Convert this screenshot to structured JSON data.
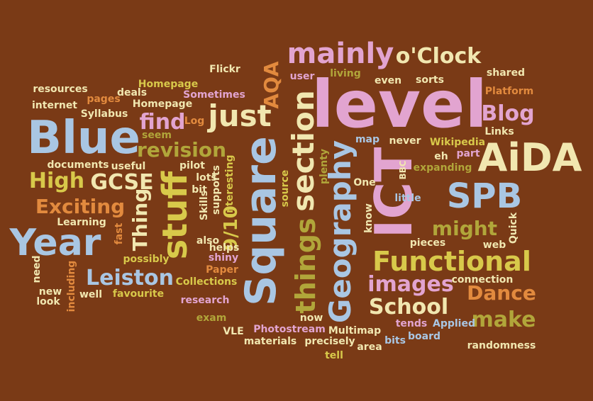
{
  "background": "#7a3a16",
  "palette": {
    "cream": "#f1e7b0",
    "light_blue": "#a9c6e3",
    "pink": "#e2a4d0",
    "olive_yellow": "#d8c94a",
    "orange": "#e28a3e",
    "olive": "#b1a63a",
    "peach": "#f0b580"
  },
  "words": {
    "level": "level",
    "blue": "Blue",
    "square": "Square",
    "ict": "ICT",
    "year": "Year",
    "stuff": "stuff",
    "aida": "AiDA",
    "spb": "SPB",
    "functional": "Functional",
    "mainly": "mainly",
    "just": "just",
    "section": "section",
    "geography": "Geography",
    "things": "things",
    "oclock": "o'Clock",
    "images": "images",
    "school": "School",
    "leiston": "Leiston",
    "high": "High",
    "gcse": "GCSE",
    "revision": "revision",
    "find": "find",
    "exciting": "Exciting",
    "thing": "Thing",
    "blog": "Blog",
    "dance": "Dance",
    "make": "make",
    "might": "might",
    "aqa": "AQA",
    "nine_ten": "9/10",
    "flickr": "Flickr",
    "resources": "resources",
    "pages": "pages",
    "deals": "deals",
    "homepage": "Homepage",
    "sometimes": "Sometimes",
    "internet": "internet",
    "syllabus": "Syllabus",
    "log": "Log",
    "seem": "seem",
    "useful": "useful",
    "documents": "documents",
    "pilot": "pilot",
    "lots": "lots",
    "skills": "Skills",
    "bit": "bit",
    "interesting": "interesting",
    "supports": "supports",
    "helps": "helps",
    "shiny": "shiny",
    "also": "also",
    "learning": "Learning",
    "fast": "fast",
    "possibly": "possibly",
    "need": "need",
    "including": "including",
    "new": "new",
    "look": "look",
    "well": "well",
    "favourite": "favourite",
    "paper": "Paper",
    "collections": "Collections",
    "research": "research",
    "exam": "exam",
    "vle": "VLE",
    "photostream": "Photostream",
    "materials": "materials",
    "precisely": "precisely",
    "multimap": "Multimap",
    "tell": "tell",
    "area": "area",
    "bits": "bits",
    "board": "board",
    "tends": "tends",
    "applied": "Applied",
    "randomness": "randomness",
    "now": "now",
    "connection": "connection",
    "web": "web",
    "quick": "Quick",
    "pieces": "pieces",
    "little": "little",
    "bbc": "BBC",
    "one": "One",
    "know": "know",
    "source": "source",
    "plenty": "plenty",
    "map": "map",
    "never": "never",
    "wikipedia": "Wikipedia",
    "eh": "eh",
    "part": "part",
    "expanding": "expanding",
    "links": "Links",
    "platform": "Platform",
    "shared": "shared",
    "sorts": "sorts",
    "even": "even",
    "living": "living",
    "user": "user"
  }
}
